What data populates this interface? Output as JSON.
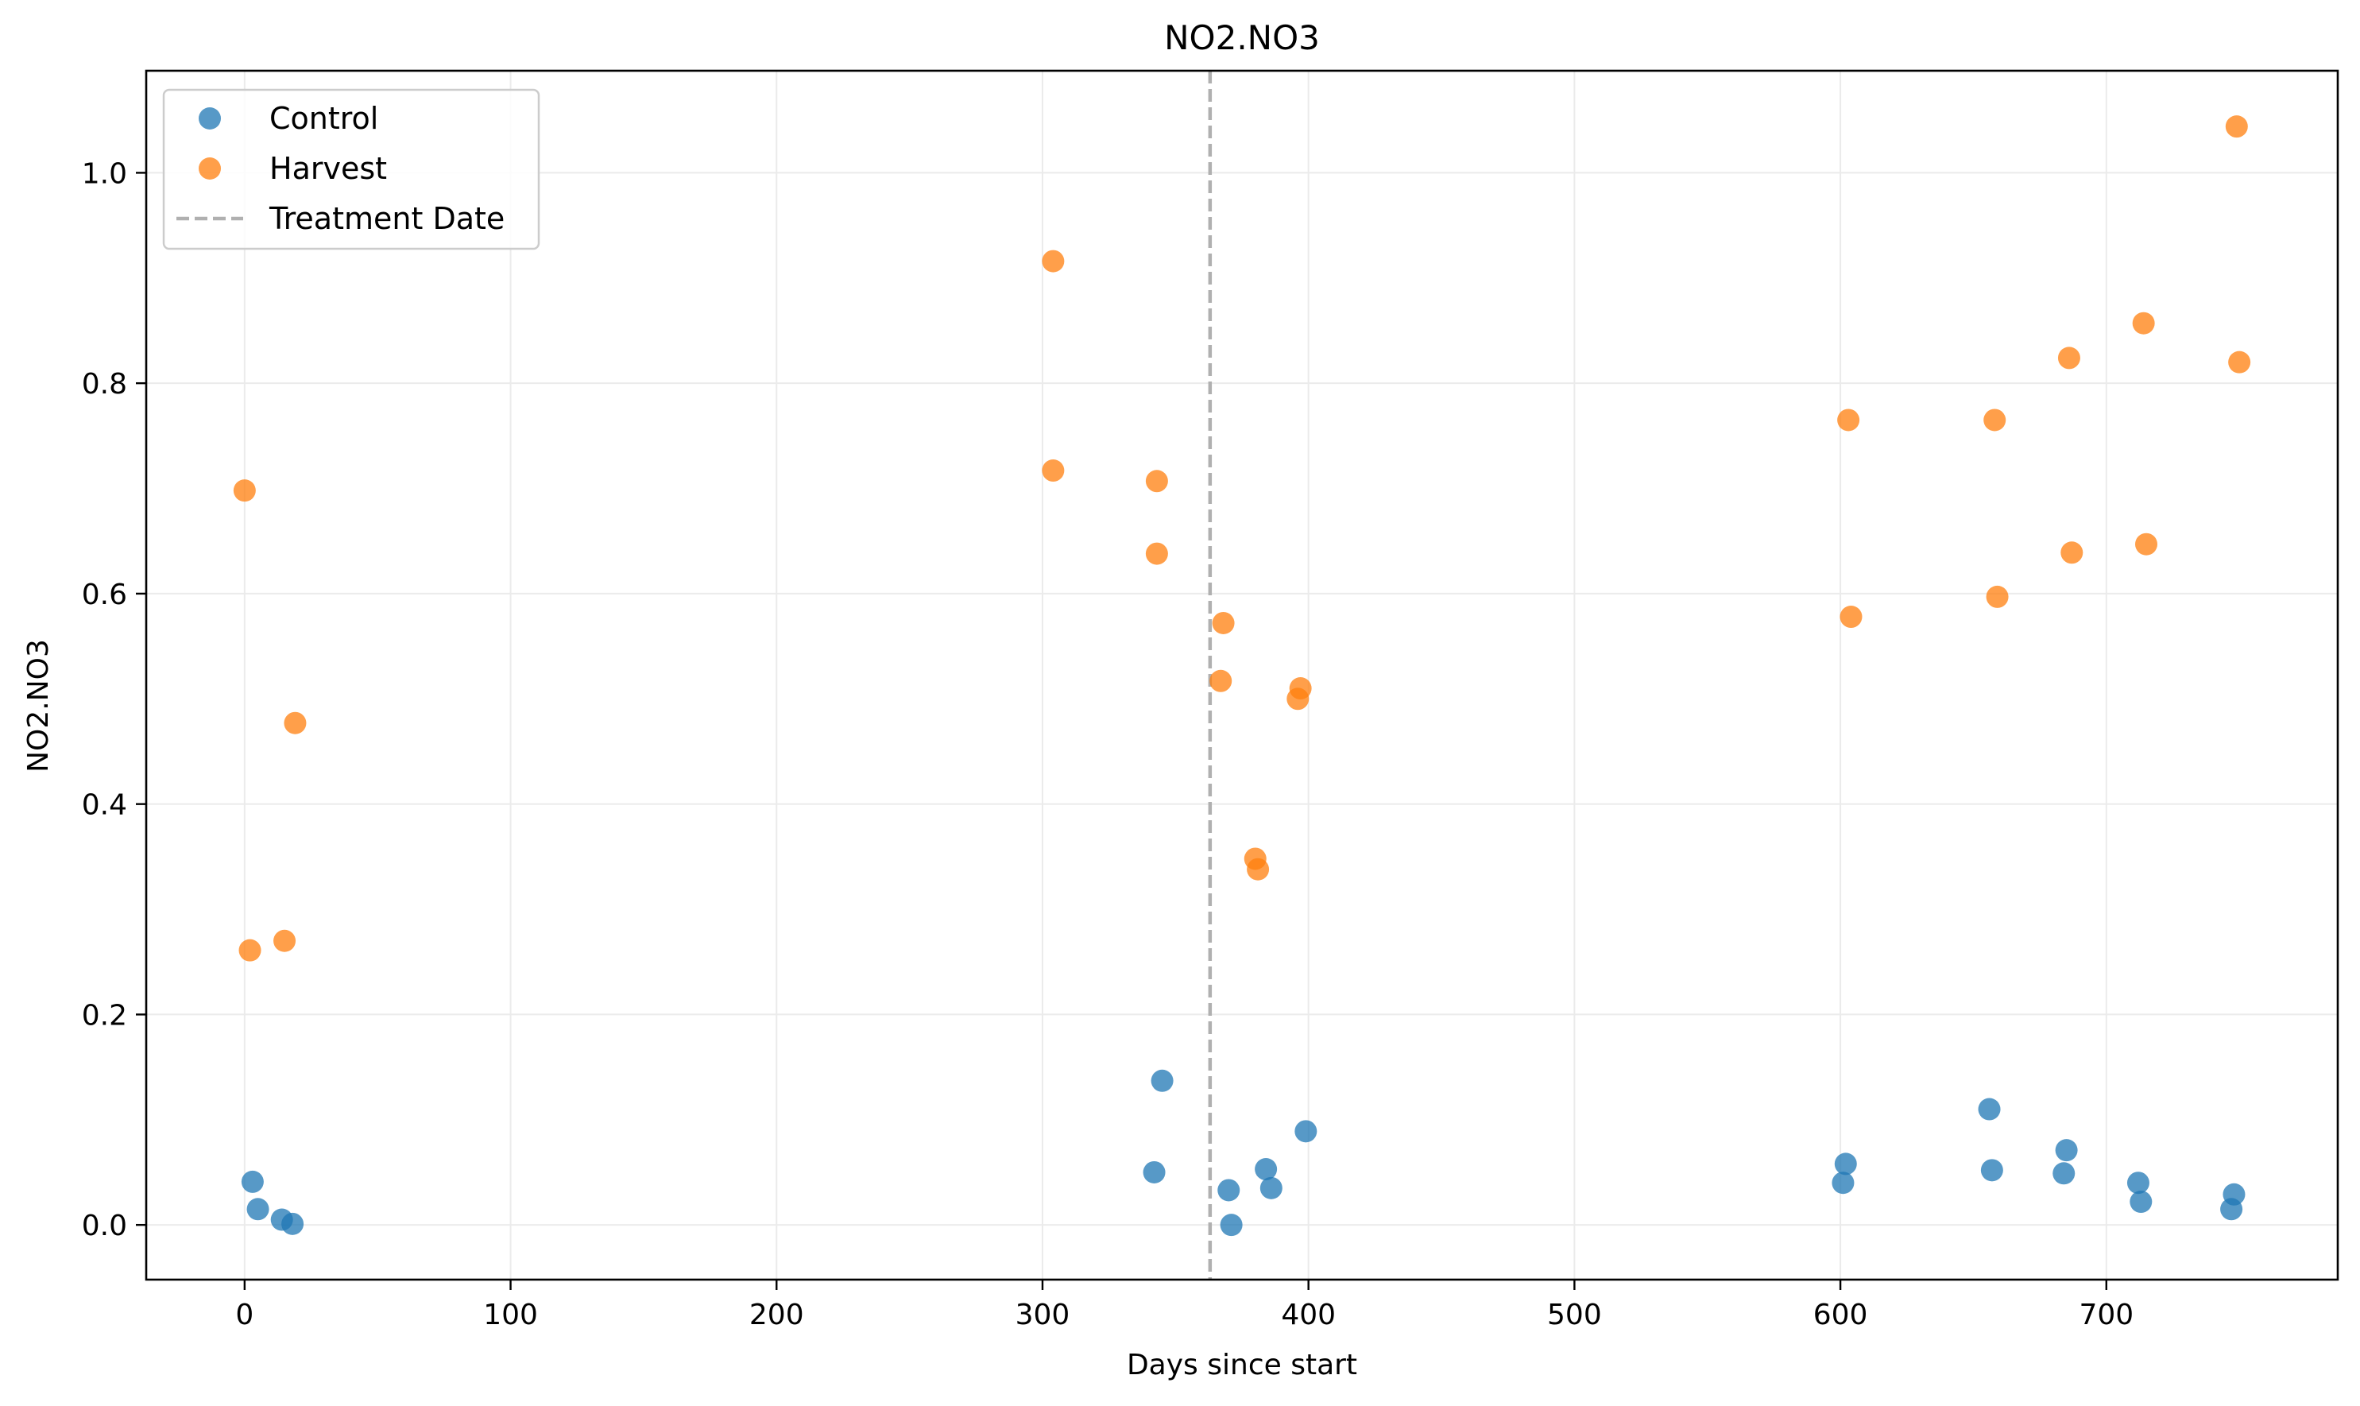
{
  "chart_data": {
    "type": "scatter",
    "title": "NO2.NO3",
    "xlabel": "Days since start",
    "ylabel": "NO2.NO3",
    "xlim": [
      -37,
      787
    ],
    "ylim": [
      -0.052,
      1.097
    ],
    "xticks": [
      0,
      100,
      200,
      300,
      400,
      500,
      600,
      700
    ],
    "yticks": [
      0.0,
      0.2,
      0.4,
      0.6,
      0.8,
      1.0
    ],
    "xtick_labels": [
      "0",
      "100",
      "200",
      "300",
      "400",
      "500",
      "600",
      "700"
    ],
    "ytick_labels": [
      "0.0",
      "0.2",
      "0.4",
      "0.6",
      "0.8",
      "1.0"
    ],
    "grid": true,
    "legend_position": "top-left",
    "treatment_line_x": 363,
    "treatment_line_label": "Treatment Date",
    "colors": {
      "control": "#1f77b4",
      "harvest": "#ff7f0e",
      "treatment": "#b0b0b0"
    },
    "series": [
      {
        "name": "Control",
        "color": "#1f77b4",
        "points": [
          {
            "x": 3,
            "y": 0.041
          },
          {
            "x": 5,
            "y": 0.015
          },
          {
            "x": 14,
            "y": 0.005
          },
          {
            "x": 18,
            "y": 0.001
          },
          {
            "x": 342,
            "y": 0.05
          },
          {
            "x": 345,
            "y": 0.137
          },
          {
            "x": 370,
            "y": 0.033
          },
          {
            "x": 371,
            "y": 0.0
          },
          {
            "x": 384,
            "y": 0.053
          },
          {
            "x": 386,
            "y": 0.035
          },
          {
            "x": 399,
            "y": 0.089
          },
          {
            "x": 601,
            "y": 0.04
          },
          {
            "x": 602,
            "y": 0.058
          },
          {
            "x": 656,
            "y": 0.11
          },
          {
            "x": 657,
            "y": 0.052
          },
          {
            "x": 684,
            "y": 0.049
          },
          {
            "x": 685,
            "y": 0.071
          },
          {
            "x": 712,
            "y": 0.04
          },
          {
            "x": 713,
            "y": 0.022
          },
          {
            "x": 747,
            "y": 0.015
          },
          {
            "x": 748,
            "y": 0.029
          }
        ]
      },
      {
        "name": "Harvest",
        "color": "#ff7f0e",
        "points": [
          {
            "x": 0,
            "y": 0.698
          },
          {
            "x": 2,
            "y": 0.261
          },
          {
            "x": 15,
            "y": 0.27
          },
          {
            "x": 19,
            "y": 0.477
          },
          {
            "x": 304,
            "y": 0.916
          },
          {
            "x": 304,
            "y": 0.717
          },
          {
            "x": 343,
            "y": 0.707
          },
          {
            "x": 343,
            "y": 0.638
          },
          {
            "x": 367,
            "y": 0.517
          },
          {
            "x": 368,
            "y": 0.572
          },
          {
            "x": 380,
            "y": 0.348
          },
          {
            "x": 381,
            "y": 0.338
          },
          {
            "x": 396,
            "y": 0.5
          },
          {
            "x": 397,
            "y": 0.51
          },
          {
            "x": 603,
            "y": 0.765
          },
          {
            "x": 604,
            "y": 0.578
          },
          {
            "x": 658,
            "y": 0.765
          },
          {
            "x": 659,
            "y": 0.597
          },
          {
            "x": 686,
            "y": 0.824
          },
          {
            "x": 687,
            "y": 0.639
          },
          {
            "x": 714,
            "y": 0.857
          },
          {
            "x": 715,
            "y": 0.647
          },
          {
            "x": 749,
            "y": 1.044
          },
          {
            "x": 750,
            "y": 0.82
          }
        ]
      }
    ]
  }
}
